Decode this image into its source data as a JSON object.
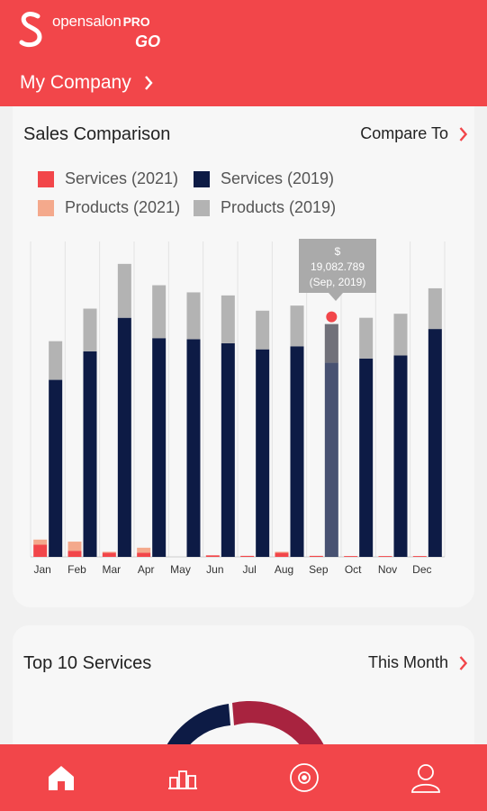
{
  "header": {
    "brand_name": "opensalon",
    "brand_pro": "PRO",
    "brand_go": "GO",
    "company_label": "My Company"
  },
  "sales_card": {
    "title": "Sales Comparison",
    "compare_label": "Compare To",
    "tooltip": {
      "currency": "$",
      "value": "19,082.789",
      "period": "(Sep, 2019)"
    }
  },
  "legend": [
    {
      "label": "Services (2021)",
      "color": "#f2464a"
    },
    {
      "label": "Services (2019)",
      "color": "#0d1b45"
    },
    {
      "label": "Products (2021)",
      "color": "#f4a98c"
    },
    {
      "label": "Products (2019)",
      "color": "#b3b3b3"
    }
  ],
  "chart_data": {
    "type": "bar",
    "stacked": true,
    "categories": [
      "Jan",
      "Feb",
      "Mar",
      "Apr",
      "May",
      "Jun",
      "Jul",
      "Aug",
      "Sep",
      "Oct",
      "Nov",
      "Dec"
    ],
    "series": [
      {
        "name": "Services (2021)",
        "group": "2021",
        "color": "#f2464a",
        "values": [
          1200,
          600,
          400,
          400,
          0,
          150,
          100,
          400,
          100,
          80,
          80,
          80
        ]
      },
      {
        "name": "Products (2021)",
        "group": "2021",
        "color": "#f4a98c",
        "values": [
          500,
          900,
          100,
          500,
          0,
          0,
          0,
          100,
          0,
          0,
          0,
          0
        ]
      },
      {
        "name": "Services (2019)",
        "group": "2019",
        "color": "#0d1b45",
        "values": [
          17400,
          20200,
          23500,
          21500,
          21400,
          21000,
          20400,
          20700,
          19082.789,
          19500,
          19800,
          22400
        ]
      },
      {
        "name": "Products (2019)",
        "group": "2019",
        "color": "#b3b3b3",
        "values": [
          3800,
          4200,
          5300,
          5200,
          4600,
          4700,
          3800,
          4000,
          3800,
          4000,
          4100,
          4000
        ]
      }
    ],
    "ymin": 0,
    "ymax": 31000,
    "highlight": {
      "series": "Services (2019)",
      "category": "Sep",
      "value": 19082.789
    },
    "grid": true,
    "legend_position": "top-left"
  },
  "top_services_card": {
    "title": "Top 10 Services",
    "period_label": "This Month"
  },
  "donut": {
    "colors": [
      "#0d1b45",
      "#a8233f"
    ]
  },
  "nav": [
    {
      "name": "home",
      "icon": "home-icon"
    },
    {
      "name": "reports",
      "icon": "bar-chart-icon"
    },
    {
      "name": "targets",
      "icon": "target-icon"
    },
    {
      "name": "profile",
      "icon": "user-icon"
    }
  ]
}
